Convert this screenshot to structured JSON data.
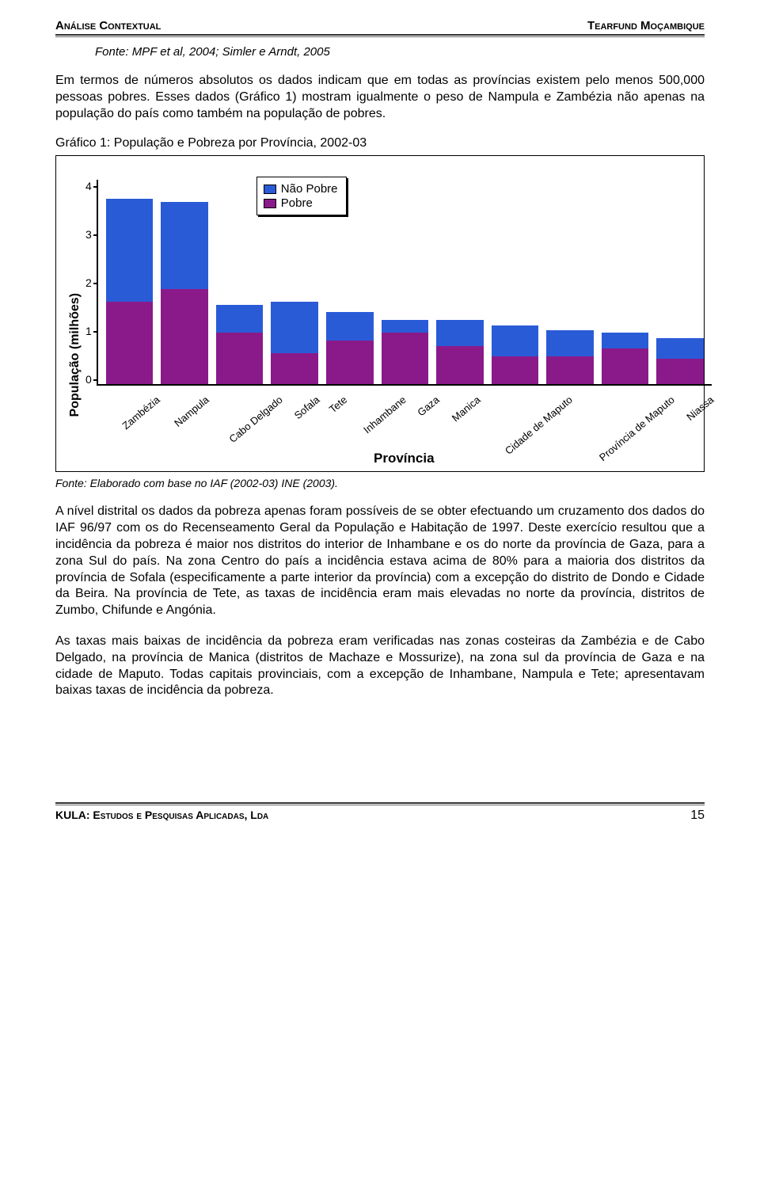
{
  "header": {
    "left": "Análise Contextual",
    "right": "Tearfund Moçambique"
  },
  "source_top": "Fonte: MPF et al, 2004; Simler e Arndt, 2005",
  "para1": "Em termos de números absolutos os dados indicam que em todas as províncias existem pelo menos 500,000 pessoas pobres. Esses dados (Gráfico 1) mostram igualmente o peso de Nampula e Zambézia não apenas na população do país como também na população de pobres.",
  "chart_title": "Gráfico 1: População e Pobreza por Província, 2002-03",
  "chart": {
    "type": "stacked-bar",
    "y_label": "População (milhões)",
    "x_label": "Província",
    "y_max": 4,
    "y_ticks": [
      "4",
      "3",
      "2",
      "1",
      "0"
    ],
    "legend": [
      {
        "label": "Não Pobre",
        "color": "#2a5bd7"
      },
      {
        "label": "Pobre",
        "color": "#8a1a8a"
      }
    ],
    "colors": {
      "pobre": "#8a1a8a",
      "nao_pobre": "#2a5bd7"
    },
    "categories": [
      "Zambézia",
      "Nampula",
      "Cabo Delgado",
      "Sofala",
      "Tete",
      "Inhambane",
      "Gaza",
      "Manica",
      "Cidade de Maputo",
      "Província de Maputo",
      "Niassa"
    ],
    "pobre": [
      1.6,
      1.85,
      1.0,
      0.6,
      0.85,
      1.0,
      0.75,
      0.55,
      0.55,
      0.7,
      0.5
    ],
    "nao_pobre": [
      2.0,
      1.7,
      0.55,
      1.0,
      0.55,
      0.25,
      0.5,
      0.6,
      0.5,
      0.3,
      0.4
    ]
  },
  "chart_source": "Fonte: Elaborado com base no IAF (2002-03) INE (2003).",
  "para2": "A nível distrital os dados da pobreza apenas foram possíveis de se obter efectuando um cruzamento dos dados do IAF 96/97 com os do Recenseamento Geral da População e Habitação de 1997. Deste exercício resultou que a incidência da pobreza é maior nos distritos do interior de Inhambane e os do norte da província de Gaza, para a zona Sul do país. Na zona Centro do país a incidência estava acima de 80% para a maioria dos distritos da província de Sofala (especificamente a parte interior da província) com a excepção do distrito de Dondo e Cidade da Beira. Na província de Tete, as taxas de incidência eram mais elevadas no norte da província, distritos de Zumbo, Chifunde e Angónia.",
  "para3": "As taxas mais baixas de incidência da pobreza eram verificadas nas zonas costeiras da Zambézia e de Cabo Delgado, na província de Manica (distritos de Machaze e Mossurize), na zona sul da província de Gaza e na cidade de Maputo. Todas capitais provinciais, com a excepção de Inhambane, Nampula e Tete; apresentavam baixas taxas de incidência da pobreza.",
  "footer": {
    "left": "KULA: Estudos e Pesquisas Aplicadas, Lda",
    "page": "15"
  }
}
